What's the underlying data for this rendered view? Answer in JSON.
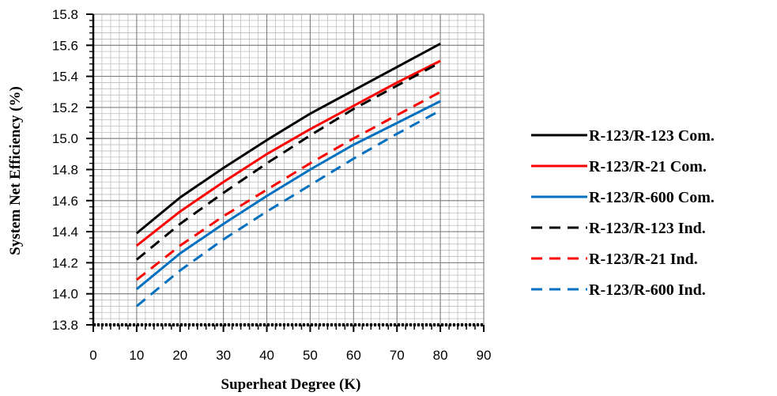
{
  "chart_data": {
    "type": "line",
    "title": "",
    "xlabel": "Superheat Degree (K)",
    "ylabel": "System Net Efficiency (%)",
    "xlim": [
      0,
      90
    ],
    "ylim": [
      13.8,
      15.8
    ],
    "x_ticks": [
      "0",
      "10",
      "20",
      "30",
      "40",
      "50",
      "60",
      "70",
      "80",
      "90"
    ],
    "y_ticks": [
      "13.8",
      "14.0",
      "14.2",
      "14.4",
      "14.6",
      "14.8",
      "15.0",
      "15.2",
      "15.4",
      "15.6",
      "15.8"
    ],
    "grid": true,
    "legend_position": "right",
    "x": [
      10,
      20,
      30,
      40,
      50,
      60,
      70,
      80
    ],
    "series": [
      {
        "name": "R-123/R-123 Com.",
        "color": "#000000",
        "dash": "solid",
        "values": [
          14.39,
          14.62,
          14.81,
          14.99,
          15.16,
          15.31,
          15.46,
          15.61
        ]
      },
      {
        "name": "R-123/R-21 Com.",
        "color": "#ff0000",
        "dash": "solid",
        "values": [
          14.31,
          14.53,
          14.72,
          14.9,
          15.06,
          15.21,
          15.36,
          15.5
        ]
      },
      {
        "name": "R-123/R-600 Com.",
        "color": "#0070c0",
        "dash": "solid",
        "values": [
          14.03,
          14.26,
          14.45,
          14.63,
          14.8,
          14.96,
          15.1,
          15.24
        ]
      },
      {
        "name": "R-123/R-123 Ind.",
        "color": "#000000",
        "dash": "dashed",
        "values": [
          14.22,
          14.45,
          14.65,
          14.84,
          15.02,
          15.19,
          15.34,
          15.49
        ]
      },
      {
        "name": "R-123/R-21 Ind.",
        "color": "#ff0000",
        "dash": "dashed",
        "values": [
          14.09,
          14.31,
          14.5,
          14.67,
          14.84,
          15.0,
          15.15,
          15.3
        ]
      },
      {
        "name": "R-123/R-600 Ind.",
        "color": "#0070c0",
        "dash": "dashed",
        "values": [
          13.92,
          14.15,
          14.35,
          14.53,
          14.7,
          14.87,
          15.03,
          15.18
        ]
      }
    ]
  }
}
